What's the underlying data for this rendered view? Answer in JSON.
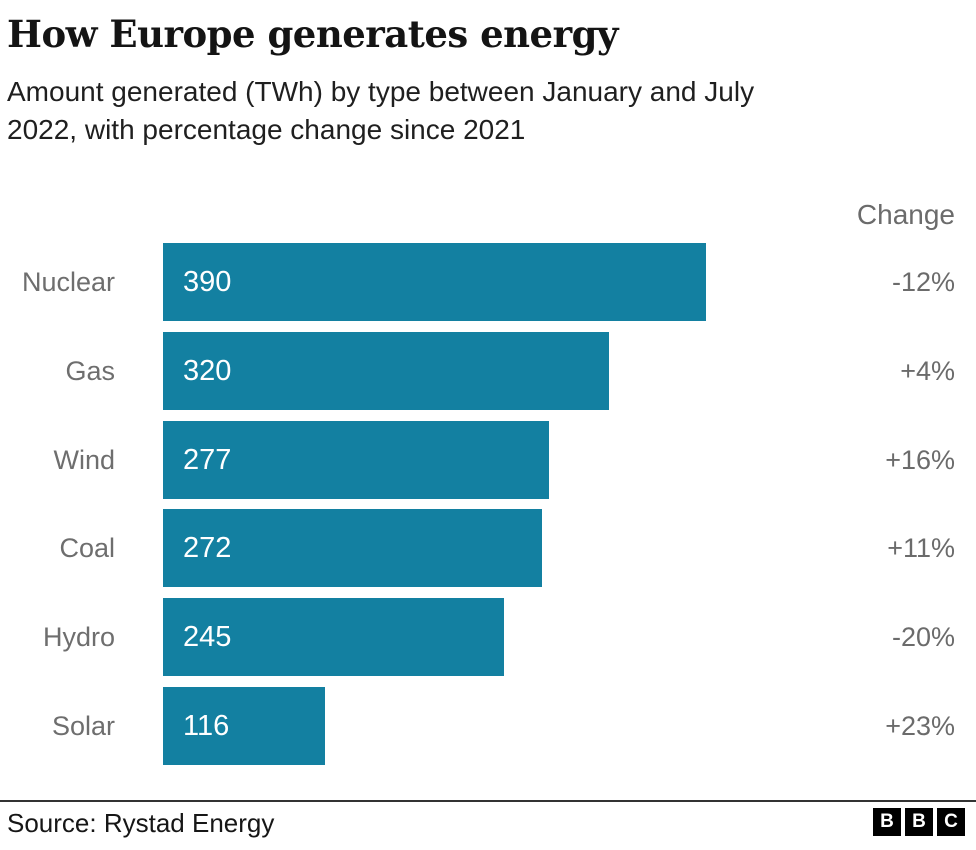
{
  "header": {
    "title": "How Europe generates energy",
    "subtitle_lines": [
      "Amount generated (TWh) by type between January and July",
      "2022, with percentage change since 2021"
    ]
  },
  "chart_data": {
    "type": "bar",
    "orientation": "horizontal",
    "title": "How Europe generates energy",
    "subtitle": "Amount generated (TWh) by type between January and July 2022, with percentage change since 2021",
    "categories": [
      "Nuclear",
      "Gas",
      "Wind",
      "Coal",
      "Hydro",
      "Solar"
    ],
    "values": [
      390,
      320,
      277,
      272,
      245,
      116
    ],
    "changes": [
      "-12%",
      "+4%",
      "+16%",
      "+11%",
      "-20%",
      "+23%"
    ],
    "unit": "TWh",
    "xlim": [
      0,
      390
    ],
    "grid": false,
    "legend": false,
    "change_column_header": "Change",
    "bar_color": "#1380a1",
    "value_label_color": "#ffffff",
    "category_label_color": "#6e6e6e",
    "change_label_color": "#6b6b6b"
  },
  "footer": {
    "source": "Source: Rystad Energy",
    "divider_color": "#333333",
    "logo_letters": [
      "B",
      "B",
      "C"
    ]
  }
}
